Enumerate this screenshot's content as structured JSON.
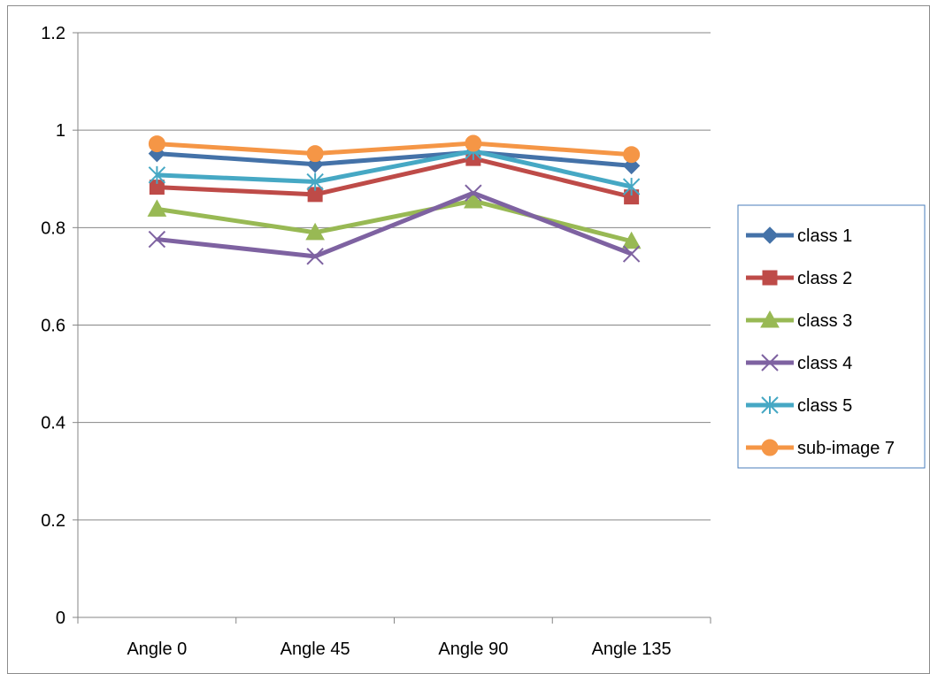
{
  "chart_data": {
    "type": "line",
    "title": "",
    "xlabel": "",
    "ylabel": "",
    "categories": [
      "Angle 0",
      "Angle 45",
      "Angle 90",
      "Angle 135"
    ],
    "ylim": [
      0,
      1.2
    ],
    "yticks": [
      "0",
      "0.2",
      "0.4",
      "0.6",
      "0.8",
      "1",
      "1.2"
    ],
    "ytick_values": [
      0,
      0.2,
      0.4,
      0.6,
      0.8,
      1.0,
      1.2
    ],
    "grid": "horizontal",
    "legend_position": "right",
    "series": [
      {
        "name": "class 1",
        "values": [
          0.952,
          0.93,
          0.955,
          0.927
        ],
        "color": "#4472a8",
        "marker": "diamond"
      },
      {
        "name": "class 2",
        "values": [
          0.883,
          0.868,
          0.942,
          0.863
        ],
        "color": "#be4b48",
        "marker": "square"
      },
      {
        "name": "class 3",
        "values": [
          0.838,
          0.79,
          0.855,
          0.772
        ],
        "color": "#98b954",
        "marker": "triangle"
      },
      {
        "name": "class 4",
        "values": [
          0.776,
          0.741,
          0.871,
          0.746
        ],
        "color": "#7e62a1",
        "marker": "x"
      },
      {
        "name": "class 5",
        "values": [
          0.908,
          0.894,
          0.957,
          0.884
        ],
        "color": "#46a8c4",
        "marker": "star"
      },
      {
        "name": "sub-image 7",
        "values": [
          0.972,
          0.952,
          0.973,
          0.95
        ],
        "color": "#f59646",
        "marker": "circle"
      }
    ]
  }
}
